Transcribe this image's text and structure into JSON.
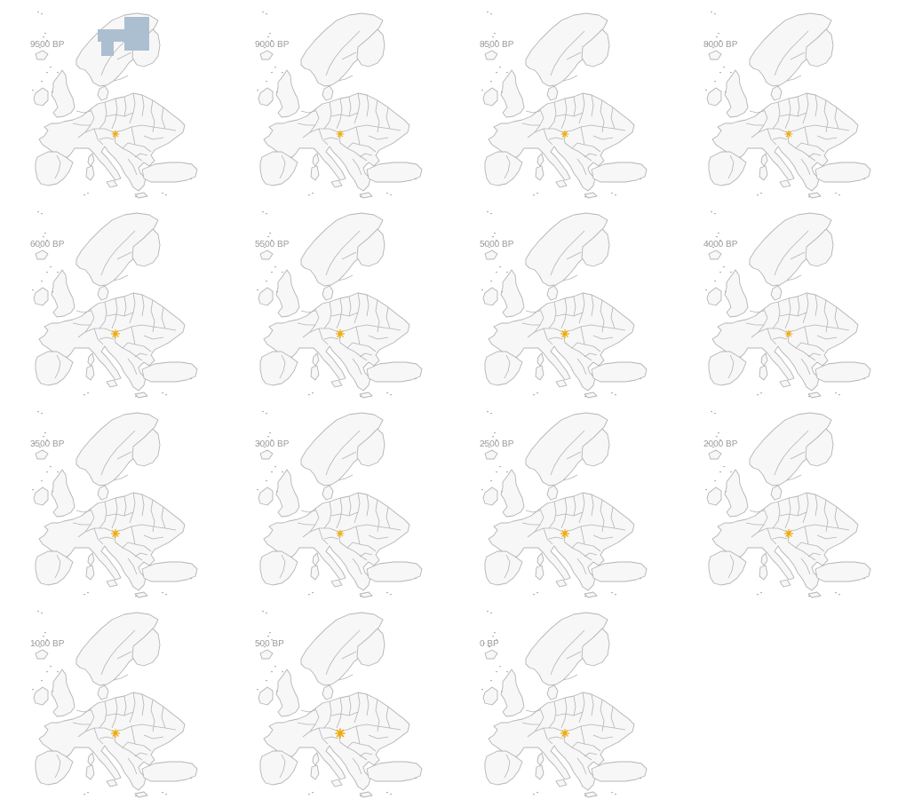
{
  "figure": {
    "panels": [
      {
        "label": "9500 BP",
        "shaded_cells": 4,
        "marker_intensity": "light"
      },
      {
        "label": "9000 BP",
        "shaded_cells": 0,
        "marker_intensity": "light"
      },
      {
        "label": "8500 BP",
        "shaded_cells": 0,
        "marker_intensity": "light"
      },
      {
        "label": "8000 BP",
        "shaded_cells": 0,
        "marker_intensity": "light"
      },
      {
        "label": "6000 BP",
        "shaded_cells": 0,
        "marker_intensity": "medium"
      },
      {
        "label": "5500 BP",
        "shaded_cells": 0,
        "marker_intensity": "medium"
      },
      {
        "label": "5000 BP",
        "shaded_cells": 0,
        "marker_intensity": "medium"
      },
      {
        "label": "4000 BP",
        "shaded_cells": 0,
        "marker_intensity": "light"
      },
      {
        "label": "3500 BP",
        "shaded_cells": 0,
        "marker_intensity": "medium"
      },
      {
        "label": "3000 BP",
        "shaded_cells": 0,
        "marker_intensity": "light"
      },
      {
        "label": "2500 BP",
        "shaded_cells": 0,
        "marker_intensity": "medium"
      },
      {
        "label": "2000 BP",
        "shaded_cells": 0,
        "marker_intensity": "medium"
      },
      {
        "label": "1000 BP",
        "shaded_cells": 0,
        "marker_intensity": "medium"
      },
      {
        "label": "500 BP",
        "shaded_cells": 0,
        "marker_intensity": "strong"
      },
      {
        "label": "0 BP",
        "shaded_cells": 0,
        "marker_intensity": "medium"
      }
    ]
  },
  "colors": {
    "land_fill": "#f7f7f7",
    "border": "#b4b4b4",
    "shaded_cell": "#a7bccd",
    "site_marker": "#f2a900",
    "label": "#9a9a9a"
  }
}
